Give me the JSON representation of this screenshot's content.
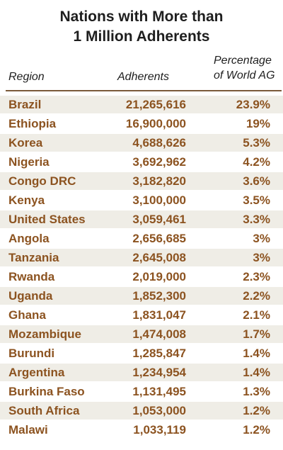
{
  "title": {
    "line1": "Nations with More than",
    "line2": "1 Million Adherents"
  },
  "headers": {
    "region": "Region",
    "adherents": "Adherents",
    "pct_line1": "Percentage",
    "pct_line2": "of World AG"
  },
  "colors": {
    "text_accent": "#8c5320",
    "row_shade": "#efede6",
    "rule": "#7a5a3a"
  },
  "rows": [
    {
      "region": "Brazil",
      "adherents": "21,265,616",
      "pct": "23.9%"
    },
    {
      "region": "Ethiopia",
      "adherents": "16,900,000",
      "pct": "19%"
    },
    {
      "region": "Korea",
      "adherents": "4,688,626",
      "pct": "5.3%"
    },
    {
      "region": "Nigeria",
      "adherents": "3,692,962",
      "pct": "4.2%"
    },
    {
      "region": "Congo DRC",
      "adherents": "3,182,820",
      "pct": "3.6%"
    },
    {
      "region": "Kenya",
      "adherents": "3,100,000",
      "pct": "3.5%"
    },
    {
      "region": "United States",
      "adherents": "3,059,461",
      "pct": "3.3%"
    },
    {
      "region": "Angola",
      "adherents": "2,656,685",
      "pct": "3%"
    },
    {
      "region": "Tanzania",
      "adherents": "2,645,008",
      "pct": "3%"
    },
    {
      "region": "Rwanda",
      "adherents": "2,019,000",
      "pct": "2.3%"
    },
    {
      "region": "Uganda",
      "adherents": "1,852,300",
      "pct": "2.2%"
    },
    {
      "region": "Ghana",
      "adherents": "1,831,047",
      "pct": "2.1%"
    },
    {
      "region": "Mozambique",
      "adherents": "1,474,008",
      "pct": "1.7%"
    },
    {
      "region": "Burundi",
      "adherents": "1,285,847",
      "pct": "1.4%"
    },
    {
      "region": "Argentina",
      "adherents": "1,234,954",
      "pct": "1.4%"
    },
    {
      "region": "Burkina Faso",
      "adherents": "1,131,495",
      "pct": "1.3%"
    },
    {
      "region": "South Africa",
      "adherents": "1,053,000",
      "pct": "1.2%"
    },
    {
      "region": "Malawi",
      "adherents": "1,033,119",
      "pct": "1.2%"
    }
  ]
}
